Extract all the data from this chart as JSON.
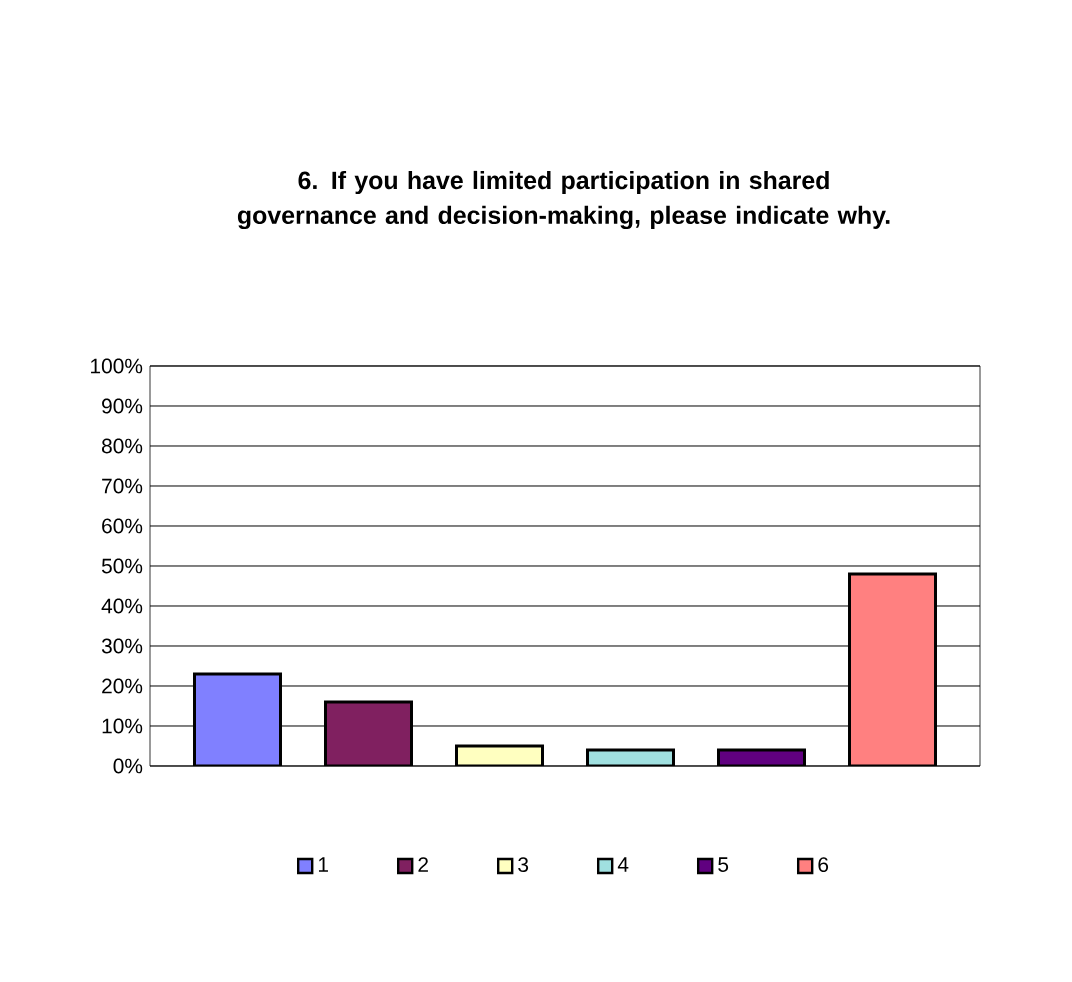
{
  "chart_data": {
    "type": "bar",
    "title": "6. If you have limited participation in shared governance and decision-making, please indicate why.",
    "categories": [
      null
    ],
    "series": [
      {
        "name": "1",
        "color": "#8080ff",
        "values": [
          23
        ]
      },
      {
        "name": "2",
        "color": "#802060",
        "values": [
          16
        ]
      },
      {
        "name": "3",
        "color": "#ffffc0",
        "values": [
          5
        ]
      },
      {
        "name": "4",
        "color": "#a0e0e0",
        "values": [
          4
        ]
      },
      {
        "name": "5",
        "color": "#600080",
        "values": [
          4
        ]
      },
      {
        "name": "6",
        "color": "#ff8080",
        "values": [
          48
        ]
      }
    ],
    "ylim": [
      0,
      100
    ],
    "yticks": [
      {
        "value": 0,
        "label": "0%"
      },
      {
        "value": 10,
        "label": "10%"
      },
      {
        "value": 20,
        "label": "20%"
      },
      {
        "value": 30,
        "label": "30%"
      },
      {
        "value": 40,
        "label": "40%"
      },
      {
        "value": 50,
        "label": "50%"
      },
      {
        "value": 60,
        "label": "60%"
      },
      {
        "value": 70,
        "label": "70%"
      },
      {
        "value": 80,
        "label": "80%"
      },
      {
        "value": 90,
        "label": "90%"
      },
      {
        "value": 100,
        "label": "100%"
      }
    ],
    "grid": "y",
    "legend": "bottom"
  }
}
